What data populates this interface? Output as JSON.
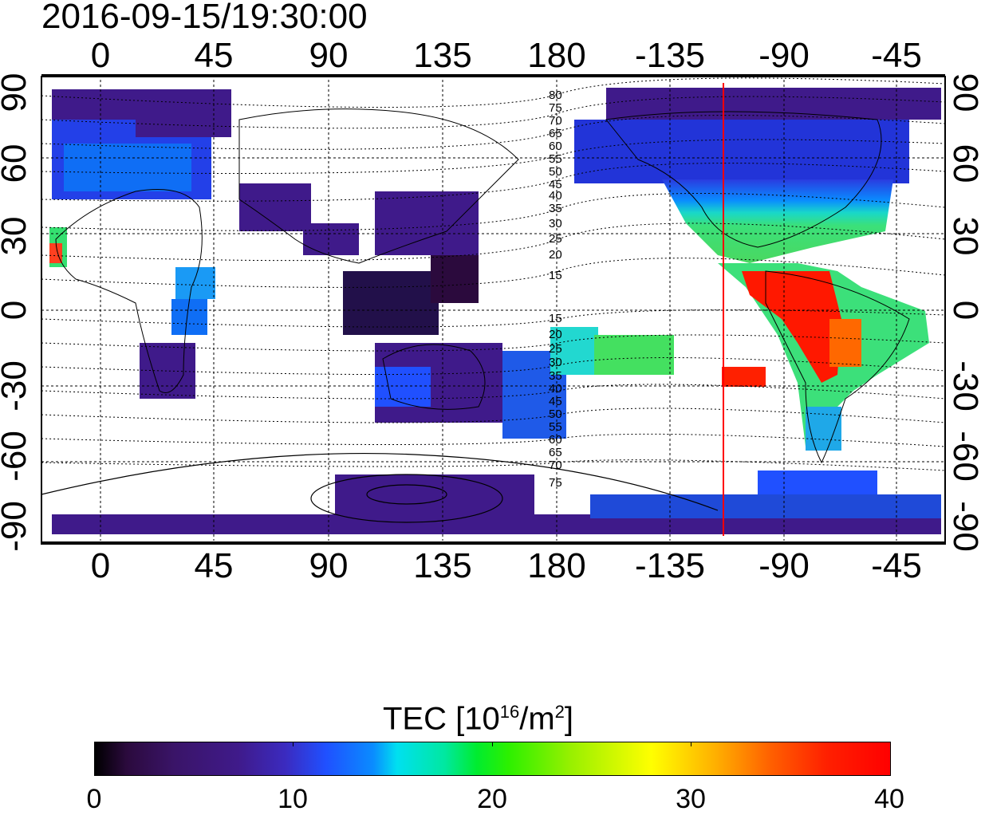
{
  "timestamp": "2016-09-15/19:30:00",
  "map": {
    "top_ticks": [
      "0",
      "45",
      "90",
      "135",
      "180",
      "-135",
      "-90",
      "-45"
    ],
    "bottom_ticks": [
      "0",
      "45",
      "90",
      "135",
      "180",
      "-135",
      "-90",
      "-45"
    ],
    "left_ticks": [
      "90",
      "60",
      "30",
      "0",
      "-30",
      "-60",
      "-90"
    ],
    "right_ticks": [
      "90",
      "60",
      "30",
      "0",
      "-30",
      "-60",
      "-90"
    ],
    "contour_labels_upper": [
      "80",
      "75",
      "70",
      "65",
      "60",
      "55",
      "50",
      "45",
      "40",
      "35",
      "30",
      "25",
      "20",
      "15"
    ],
    "contour_labels_lower": [
      "15",
      "20",
      "25",
      "30",
      "35",
      "40",
      "45",
      "50",
      "55",
      "60",
      "65",
      "70",
      "75"
    ],
    "terminator_line_color": "#ff0000"
  },
  "colorbar": {
    "title_main": "TEC  [10",
    "title_exp1": "16",
    "title_mid": "/m",
    "title_exp2": "2",
    "title_end": "]",
    "labels": [
      "0",
      "10",
      "20",
      "30",
      "40"
    ]
  }
}
